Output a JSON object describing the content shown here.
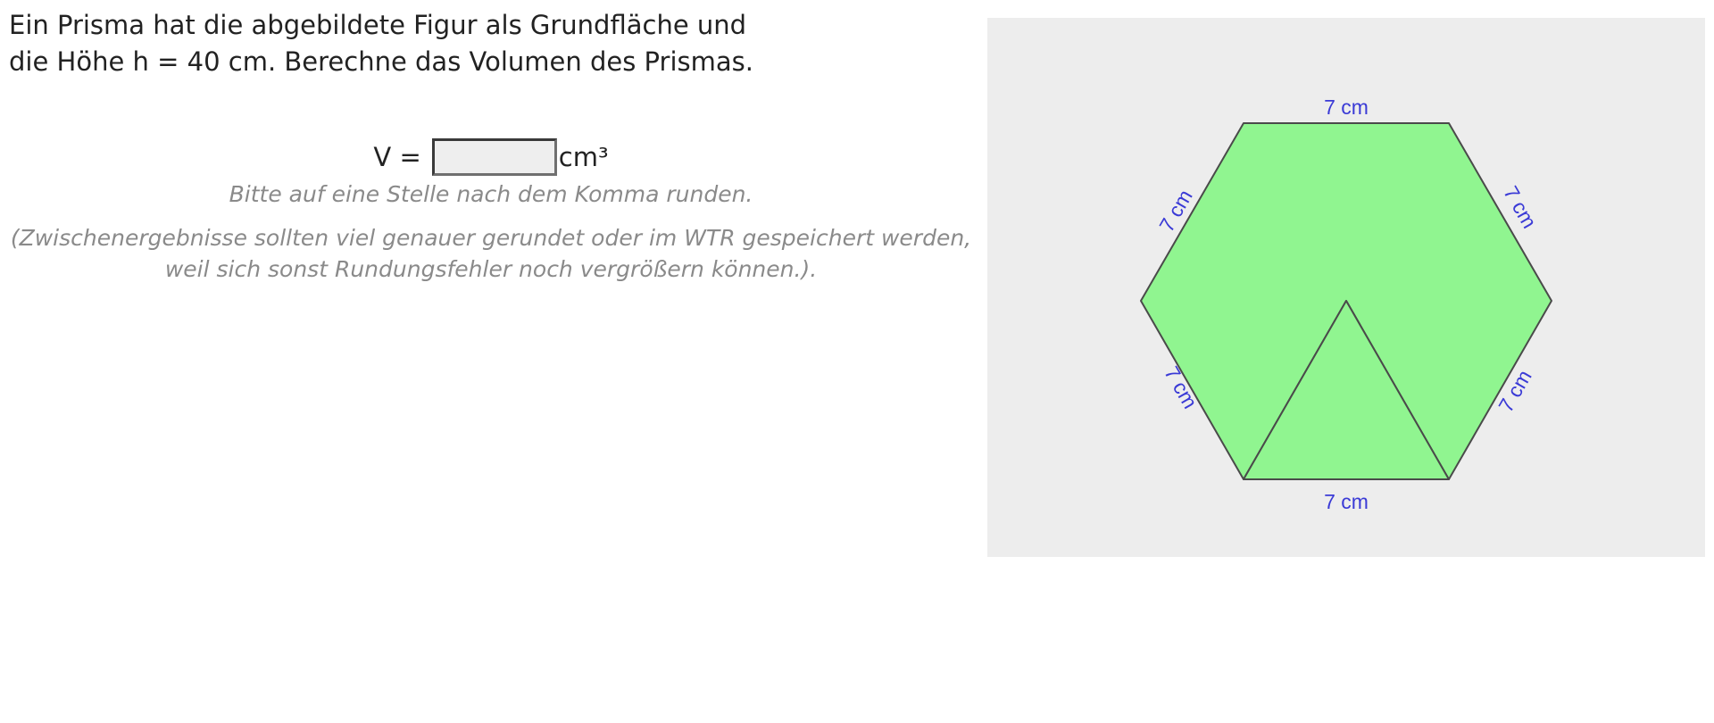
{
  "task": {
    "line1": "Ein Prisma hat die abgebildete Figur als Grundfläche und",
    "line2": "die Höhe h = 40 cm. Berechne das Volumen des Prismas."
  },
  "answer": {
    "label": "V =",
    "value": "",
    "unit": "cm³"
  },
  "hints": {
    "rounding": "Bitte auf eine Stelle nach dem Komma runden.",
    "intermediate_line1": "(Zwischenergebnisse sollten viel genauer gerundet oder im WTR gespeichert werden,",
    "intermediate_line2": "weil sich sonst Rundungsfehler noch vergrößern können.)."
  },
  "figure": {
    "fill_color": "#90f590",
    "stroke_color": "#4a4a4a",
    "label_color": "#3a3ad6",
    "background_color": "#ededed",
    "edge_labels": {
      "top": "7 cm",
      "upper_left": "7 cm",
      "upper_right": "7 cm",
      "lower_left": "7 cm",
      "lower_right": "7 cm",
      "bottom": "7 cm"
    }
  }
}
